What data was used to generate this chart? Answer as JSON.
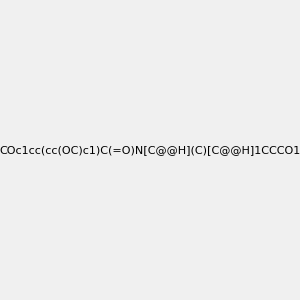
{
  "smiles": "COc1cc(cc(OC)c1)C(=O)N[C@@H](C)[C@@H]1CCCO1",
  "image_size": 300,
  "background_color": "#f0f0f0"
}
